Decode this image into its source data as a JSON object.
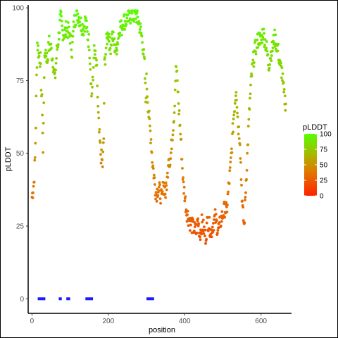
{
  "chart_data": {
    "type": "scatter",
    "xlabel": "position",
    "ylabel": "pLDDT",
    "xlim": [
      -10,
      680
    ],
    "ylim": [
      -5,
      101
    ],
    "x_ticks": [
      0,
      200,
      400,
      600
    ],
    "x_tick_labels": [
      "0",
      "200",
      "400",
      "600"
    ],
    "y_ticks": [
      0,
      25,
      50,
      75,
      100
    ],
    "y_tick_labels": [
      "0",
      "25",
      "50",
      "75",
      "100"
    ],
    "grid": false,
    "legend": {
      "title": "pLDDT",
      "position": "right",
      "gradient_colors": [
        "#ff2200",
        "#e07a00",
        "#9fbf00",
        "#55ff00"
      ],
      "ticks": [
        0,
        25,
        50,
        75,
        100
      ],
      "tick_labels": [
        "0",
        "25",
        "50",
        "75",
        "100"
      ]
    },
    "colors": {
      "low": "#ff2200",
      "mid": "#e07a00",
      "high": "#55ff00",
      "domain_bar": "#1a1aff"
    },
    "anchor_points": [
      [
        0,
        35
      ],
      [
        5,
        40
      ],
      [
        8,
        48
      ],
      [
        10,
        60
      ],
      [
        12,
        76
      ],
      [
        14,
        88
      ],
      [
        18,
        84
      ],
      [
        22,
        82
      ],
      [
        25,
        70
      ],
      [
        27,
        65
      ],
      [
        29,
        50
      ],
      [
        32,
        78
      ],
      [
        35,
        86
      ],
      [
        40,
        82
      ],
      [
        45,
        88
      ],
      [
        50,
        86
      ],
      [
        55,
        82
      ],
      [
        60,
        75
      ],
      [
        65,
        85
      ],
      [
        70,
        90
      ],
      [
        75,
        97
      ],
      [
        80,
        92
      ],
      [
        85,
        91
      ],
      [
        90,
        93
      ],
      [
        95,
        92
      ],
      [
        100,
        90
      ],
      [
        105,
        85
      ],
      [
        110,
        95
      ],
      [
        115,
        97
      ],
      [
        120,
        98
      ],
      [
        125,
        96
      ],
      [
        130,
        94
      ],
      [
        135,
        93
      ],
      [
        140,
        96
      ],
      [
        145,
        91
      ],
      [
        150,
        88
      ],
      [
        153,
        80
      ],
      [
        156,
        70
      ],
      [
        160,
        75
      ],
      [
        162,
        85
      ],
      [
        165,
        84
      ],
      [
        170,
        78
      ],
      [
        173,
        65
      ],
      [
        176,
        57
      ],
      [
        180,
        50
      ],
      [
        185,
        46
      ],
      [
        188,
        55
      ],
      [
        190,
        80
      ],
      [
        195,
        88
      ],
      [
        200,
        92
      ],
      [
        205,
        86
      ],
      [
        210,
        91
      ],
      [
        215,
        88
      ],
      [
        220,
        85
      ],
      [
        225,
        89
      ],
      [
        230,
        94
      ],
      [
        235,
        93
      ],
      [
        240,
        96
      ],
      [
        245,
        95
      ],
      [
        250,
        97
      ],
      [
        255,
        96
      ],
      [
        260,
        98
      ],
      [
        265,
        97
      ],
      [
        270,
        98
      ],
      [
        275,
        97
      ],
      [
        280,
        95
      ],
      [
        285,
        92
      ],
      [
        290,
        88
      ],
      [
        295,
        80
      ],
      [
        298,
        68
      ],
      [
        300,
        75
      ],
      [
        305,
        65
      ],
      [
        308,
        60
      ],
      [
        312,
        55
      ],
      [
        315,
        48
      ],
      [
        320,
        42
      ],
      [
        323,
        38
      ],
      [
        326,
        36
      ],
      [
        330,
        38
      ],
      [
        335,
        37
      ],
      [
        340,
        34
      ],
      [
        345,
        40
      ],
      [
        350,
        36
      ],
      [
        355,
        42
      ],
      [
        358,
        50
      ],
      [
        362,
        46
      ],
      [
        366,
        54
      ],
      [
        370,
        60
      ],
      [
        373,
        65
      ],
      [
        376,
        76
      ],
      [
        378,
        80
      ],
      [
        382,
        72
      ],
      [
        385,
        65
      ],
      [
        390,
        55
      ],
      [
        393,
        48
      ],
      [
        396,
        40
      ],
      [
        400,
        36
      ],
      [
        405,
        30
      ],
      [
        410,
        28
      ],
      [
        415,
        26
      ],
      [
        420,
        25
      ],
      [
        425,
        24
      ],
      [
        430,
        23
      ],
      [
        435,
        27
      ],
      [
        440,
        22
      ],
      [
        445,
        26
      ],
      [
        450,
        24
      ],
      [
        455,
        21
      ],
      [
        460,
        27
      ],
      [
        465,
        25
      ],
      [
        470,
        23
      ],
      [
        475,
        26
      ],
      [
        480,
        28
      ],
      [
        485,
        25
      ],
      [
        490,
        24
      ],
      [
        495,
        27
      ],
      [
        500,
        29
      ],
      [
        505,
        31
      ],
      [
        510,
        30
      ],
      [
        515,
        38
      ],
      [
        520,
        45
      ],
      [
        525,
        55
      ],
      [
        528,
        62
      ],
      [
        532,
        68
      ],
      [
        535,
        73
      ],
      [
        540,
        60
      ],
      [
        545,
        55
      ],
      [
        548,
        42
      ],
      [
        552,
        30
      ],
      [
        556,
        25
      ],
      [
        560,
        38
      ],
      [
        565,
        52
      ],
      [
        570,
        66
      ],
      [
        575,
        76
      ],
      [
        580,
        82
      ],
      [
        585,
        86
      ],
      [
        590,
        88
      ],
      [
        595,
        90
      ],
      [
        600,
        88
      ],
      [
        605,
        92
      ],
      [
        610,
        89
      ],
      [
        615,
        86
      ],
      [
        620,
        80
      ],
      [
        625,
        84
      ],
      [
        630,
        86
      ],
      [
        635,
        90
      ],
      [
        640,
        88
      ],
      [
        645,
        85
      ],
      [
        650,
        80
      ],
      [
        655,
        78
      ],
      [
        660,
        70
      ],
      [
        665,
        67
      ]
    ],
    "domain_segments": [
      [
        15,
        35
      ],
      [
        70,
        78
      ],
      [
        90,
        100
      ],
      [
        140,
        160
      ],
      [
        300,
        320
      ]
    ]
  }
}
